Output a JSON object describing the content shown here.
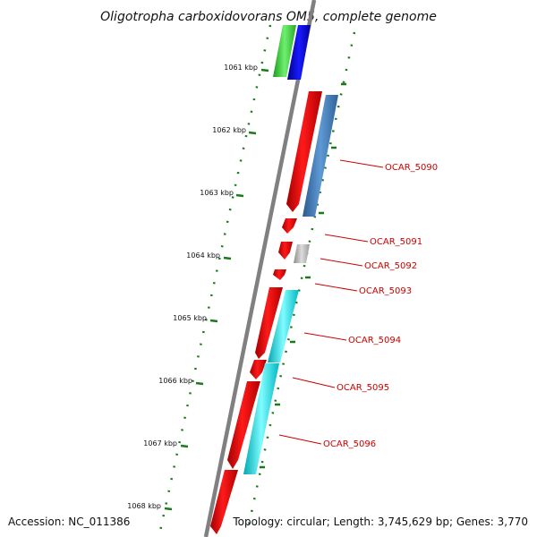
{
  "title": "Oligotropha carboxidovorans OM5, complete genome",
  "footer": {
    "accession": "Accession: NC_011386",
    "topology": "Topology: circular; Length: 3,745,629 bp; Genes: 3,770"
  },
  "ruler_labels": [
    "1061 kbp",
    "1062 kbp",
    "1063 kbp",
    "1064 kbp",
    "1065 kbp",
    "1066 kbp",
    "1067 kbp",
    "1068 kbp"
  ],
  "gene_labels": [
    "OCAR_5090",
    "OCAR_5091",
    "OCAR_5092",
    "OCAR_5093",
    "OCAR_5094",
    "OCAR_5095",
    "OCAR_5096"
  ],
  "colors": {
    "backbone": "#808080",
    "cds_forward": "#e8000b",
    "blue_track": "#0000ee",
    "green_track": "#3bd13b",
    "steel_track": "#3f7ab5",
    "gray_track": "#b4b4b4",
    "cyan_track": "#00e5ee",
    "tick": "#1a7a1a",
    "label": "#cc0000"
  }
}
